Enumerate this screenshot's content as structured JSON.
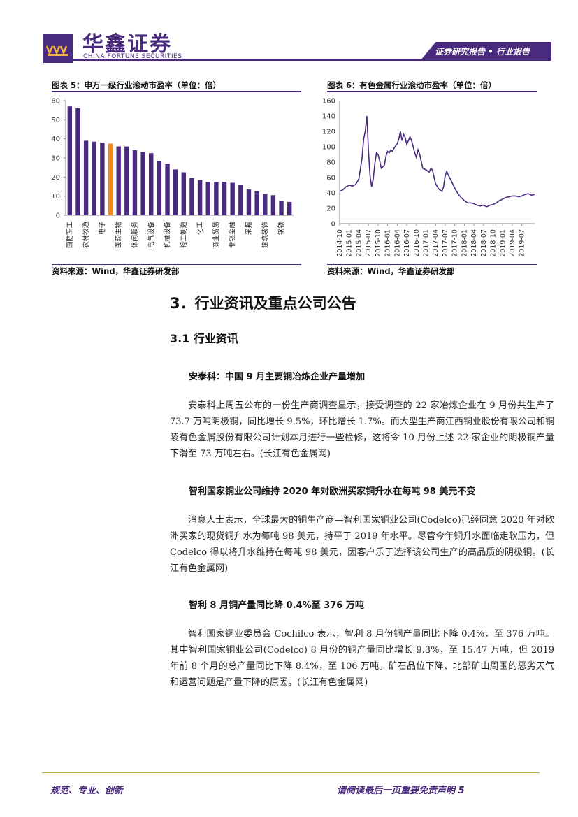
{
  "header": {
    "logo_cn": "华鑫证券",
    "logo_en": "CHINA FORTUNE SECURITIES",
    "banner": "证券研究报告 • 行业报告",
    "brand_color": "#4a2a7f"
  },
  "figure5": {
    "title": "图表 5：申万一级行业滚动市盈率（单位：倍）",
    "source": "资料来源：Wind，华鑫证券研发部"
  },
  "figure6": {
    "title": "图表 6：有色金属行业滚动市盈率（单位：倍）",
    "source": "资料来源：Wind，华鑫证券研发部"
  },
  "chart_data": [
    {
      "type": "bar",
      "categories": [
        "国防军工",
        "",
        "农林牧渔",
        "",
        "电子",
        "",
        "医药生物",
        "",
        "休闲服务",
        "",
        "电气设备",
        "",
        "机械设备",
        "",
        "轻工制造",
        "",
        "化工",
        "",
        "商业贸易",
        "",
        "非银金融",
        "",
        "采掘",
        "",
        "建筑装饰",
        "",
        "钢铁",
        ""
      ],
      "values": [
        57,
        56,
        39,
        38.5,
        38,
        37.5,
        36,
        36,
        34,
        33,
        32.5,
        28.5,
        27,
        24,
        22.5,
        19.5,
        18.5,
        17.5,
        17.5,
        17.5,
        17,
        16,
        13.5,
        12.5,
        11,
        10.5,
        7.5,
        7
      ],
      "highlight_index": 5,
      "colors": {
        "bar": "#4a2a7f",
        "highlight": "#f08a1c"
      },
      "ylim": [
        0,
        60
      ],
      "yticks": [
        0,
        10,
        20,
        30,
        40,
        50,
        60
      ],
      "grid": false
    },
    {
      "type": "line",
      "x_labels": [
        "2014-10",
        "2015-01",
        "2015-04",
        "2015-07",
        "2015-10",
        "2016-01",
        "2016-04",
        "2016-07",
        "2016-10",
        "2017-01",
        "2017-04",
        "2017-07",
        "2017-10",
        "2018-01",
        "2018-04",
        "2018-07",
        "2018-10",
        "2019-01",
        "2019-04",
        "2019-07"
      ],
      "x_start": "2014-10",
      "ylim": [
        0,
        160
      ],
      "yticks": [
        0,
        20,
        40,
        60,
        80,
        100,
        120,
        140,
        160
      ],
      "series": [
        {
          "color": "#4a2a7f",
          "values": [
            [
              0,
              42
            ],
            [
              1,
              44
            ],
            [
              2,
              48
            ],
            [
              3,
              50
            ],
            [
              4,
              49
            ],
            [
              5,
              51
            ],
            [
              6,
              58
            ],
            [
              7,
              85
            ],
            [
              7.5,
              110
            ],
            [
              8,
              120
            ],
            [
              8.5,
              140
            ],
            [
              9,
              95
            ],
            [
              9.5,
              62
            ],
            [
              10,
              48
            ],
            [
              10.5,
              58
            ],
            [
              11,
              78
            ],
            [
              11.5,
              92
            ],
            [
              12,
              90
            ],
            [
              12.5,
              82
            ],
            [
              13,
              72
            ],
            [
              14,
              76
            ],
            [
              14.5,
              88
            ],
            [
              15,
              94
            ],
            [
              15.5,
              92
            ],
            [
              16,
              96
            ],
            [
              16.5,
              94
            ],
            [
              17,
              98
            ],
            [
              18,
              104
            ],
            [
              18.5,
              110
            ],
            [
              19,
              120
            ],
            [
              19.5,
              108
            ],
            [
              20,
              116
            ],
            [
              20.5,
              112
            ],
            [
              21,
              103
            ],
            [
              21.5,
              108
            ],
            [
              22,
              113
            ],
            [
              22.5,
              108
            ],
            [
              23,
              100
            ],
            [
              23.5,
              92
            ],
            [
              24,
              86
            ],
            [
              24.5,
              96
            ],
            [
              25,
              91
            ],
            [
              26,
              72
            ],
            [
              27,
              70
            ],
            [
              28,
              67
            ],
            [
              28.5,
              72
            ],
            [
              29,
              70
            ],
            [
              30,
              52
            ],
            [
              31,
              45
            ],
            [
              32,
              42
            ],
            [
              32.5,
              48
            ],
            [
              33,
              62
            ],
            [
              33.5,
              68
            ],
            [
              34,
              63
            ],
            [
              35,
              55
            ],
            [
              36,
              46
            ],
            [
              37,
              39
            ],
            [
              38,
              34
            ],
            [
              39,
              30
            ],
            [
              40,
              27
            ],
            [
              41,
              27
            ],
            [
              42,
              26
            ],
            [
              43,
              24
            ],
            [
              44,
              23
            ],
            [
              45,
              24
            ],
            [
              46,
              22
            ],
            [
              47,
              24
            ],
            [
              48,
              25
            ],
            [
              49,
              27
            ],
            [
              50,
              30
            ],
            [
              51,
              32
            ],
            [
              52,
              34
            ],
            [
              53,
              35
            ],
            [
              54,
              36
            ],
            [
              55,
              36
            ],
            [
              56,
              35
            ],
            [
              57,
              36
            ],
            [
              58,
              38
            ],
            [
              59,
              39
            ],
            [
              60,
              37
            ],
            [
              61,
              38
            ]
          ]
        }
      ],
      "grid": false
    }
  ],
  "section": {
    "title": "3．行业资讯及重点公司公告",
    "subtitle": "3.1  行业资讯"
  },
  "news": [
    {
      "title": "安泰科：中国 9 月主要铜冶炼企业产量增加",
      "body": "安泰科上周五公布的一份生产商调查显示，接受调查的 22 家冶炼企业在 9 月份共生产了 73.7 万吨阴极铜，同比增长 9.5%，环比增长 1.7%。而大型生产商江西铜业股份有限公司和铜陵有色金属股份有限公司计划本月进行一些检修，这将令 10 月份上述 22 家企业的阴极铜产量下滑至 73 万吨左右。(长江有色金属网)"
    },
    {
      "title": "智利国家铜业公司维持 2020 年对欧洲买家铜升水在每吨 98 美元不变",
      "body": "消息人士表示，全球最大的铜生产商—智利国家铜业公司(Codelco)已经同意 2020 年对欧洲买家的现货铜升水为每吨 98 美元，持平于 2019 年水平。尽管今年铜升水面临走软压力，但 Codelco 得以将升水维持在每吨 98 美元，因客户乐于选择该公司生产的高品质的阴极铜。(长江有色金属网)"
    },
    {
      "title": "智利 8 月铜产量同比降 0.4%至 376 万吨",
      "body": "智利国家铜业委员会 Cochilco 表示，智利 8 月份铜产量同比下降 0.4%，至 376 万吨。其中智利国家铜业公司(Codelco) 8 月份的铜产量同比增长 9.3%，至 15.47 万吨，但 2019 年前 8 个月的总产量同比下降 8.4%，至 106 万吨。矿石品位下降、北部矿山周围的恶劣天气和运营问题是产量下降的原因。(长江有色金属网)"
    }
  ],
  "footer": {
    "left": "规范、专业、创新",
    "right": "请阅读最后一页重要免责声明 5"
  }
}
